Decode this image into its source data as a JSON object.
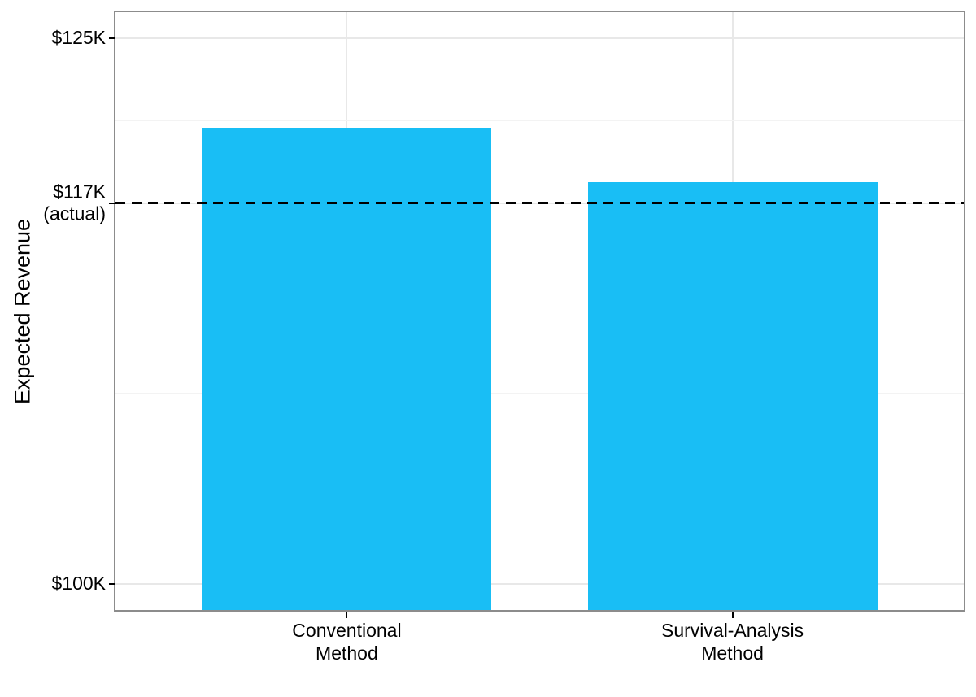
{
  "chart_data": {
    "type": "bar",
    "title": "",
    "xlabel": "",
    "ylabel": "Expected Revenue",
    "categories": [
      {
        "label_lines": [
          "Conventional",
          "Method"
        ]
      },
      {
        "label_lines": [
          "Survival-Analysis",
          "Method"
        ]
      }
    ],
    "values": [
      120.9,
      118.4
    ],
    "value_unit": "thousand dollars",
    "ylim": [
      98.8,
      126.2
    ],
    "yticks": [
      {
        "value": 100,
        "lines": [
          "$100K"
        ]
      },
      {
        "value": 117.45,
        "lines": [
          "$117K",
          "(actual)"
        ]
      },
      {
        "value": 125,
        "lines": [
          "$125K"
        ]
      }
    ],
    "minor_gridlines": [
      108.72,
      121.22
    ],
    "reference_line": {
      "value": 117.45,
      "style": "dashed",
      "color": "#000000"
    },
    "grid": true,
    "legend": false,
    "colors": {
      "bar_fill": "#19BEF5",
      "panel_border": "#8C8C8C",
      "grid_major": "#E8E8E8",
      "grid_minor": "#F3F3F3",
      "text": "#000000"
    }
  }
}
